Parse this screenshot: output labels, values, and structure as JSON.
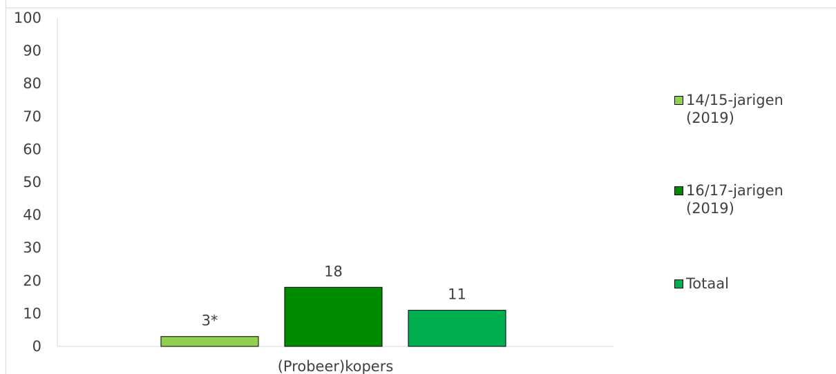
{
  "chart_data": {
    "type": "bar",
    "categories": [
      "(Probeer)kopers"
    ],
    "series": [
      {
        "name": "14/15-jarigen (2019)",
        "values": [
          3
        ],
        "label": "3*",
        "color": "#92d050"
      },
      {
        "name": "16/17-jarigen (2019)",
        "values": [
          18
        ],
        "label": "18",
        "color": "#008a00"
      },
      {
        "name": "Totaal",
        "values": [
          11
        ],
        "label": "11",
        "color": "#00b050"
      }
    ],
    "yticks": [
      "0",
      "10",
      "20",
      "30",
      "40",
      "50",
      "60",
      "70",
      "80",
      "90",
      "100"
    ],
    "ylim": [
      0,
      100
    ],
    "grid": false,
    "legend_position": "right"
  },
  "legend": {
    "items": [
      {
        "label": "14/15-jarigen\n(2019)",
        "color": "#92d050"
      },
      {
        "label": "16/17-jarigen\n(2019)",
        "color": "#008a00"
      },
      {
        "label": "Totaal",
        "color": "#00b050"
      }
    ]
  }
}
